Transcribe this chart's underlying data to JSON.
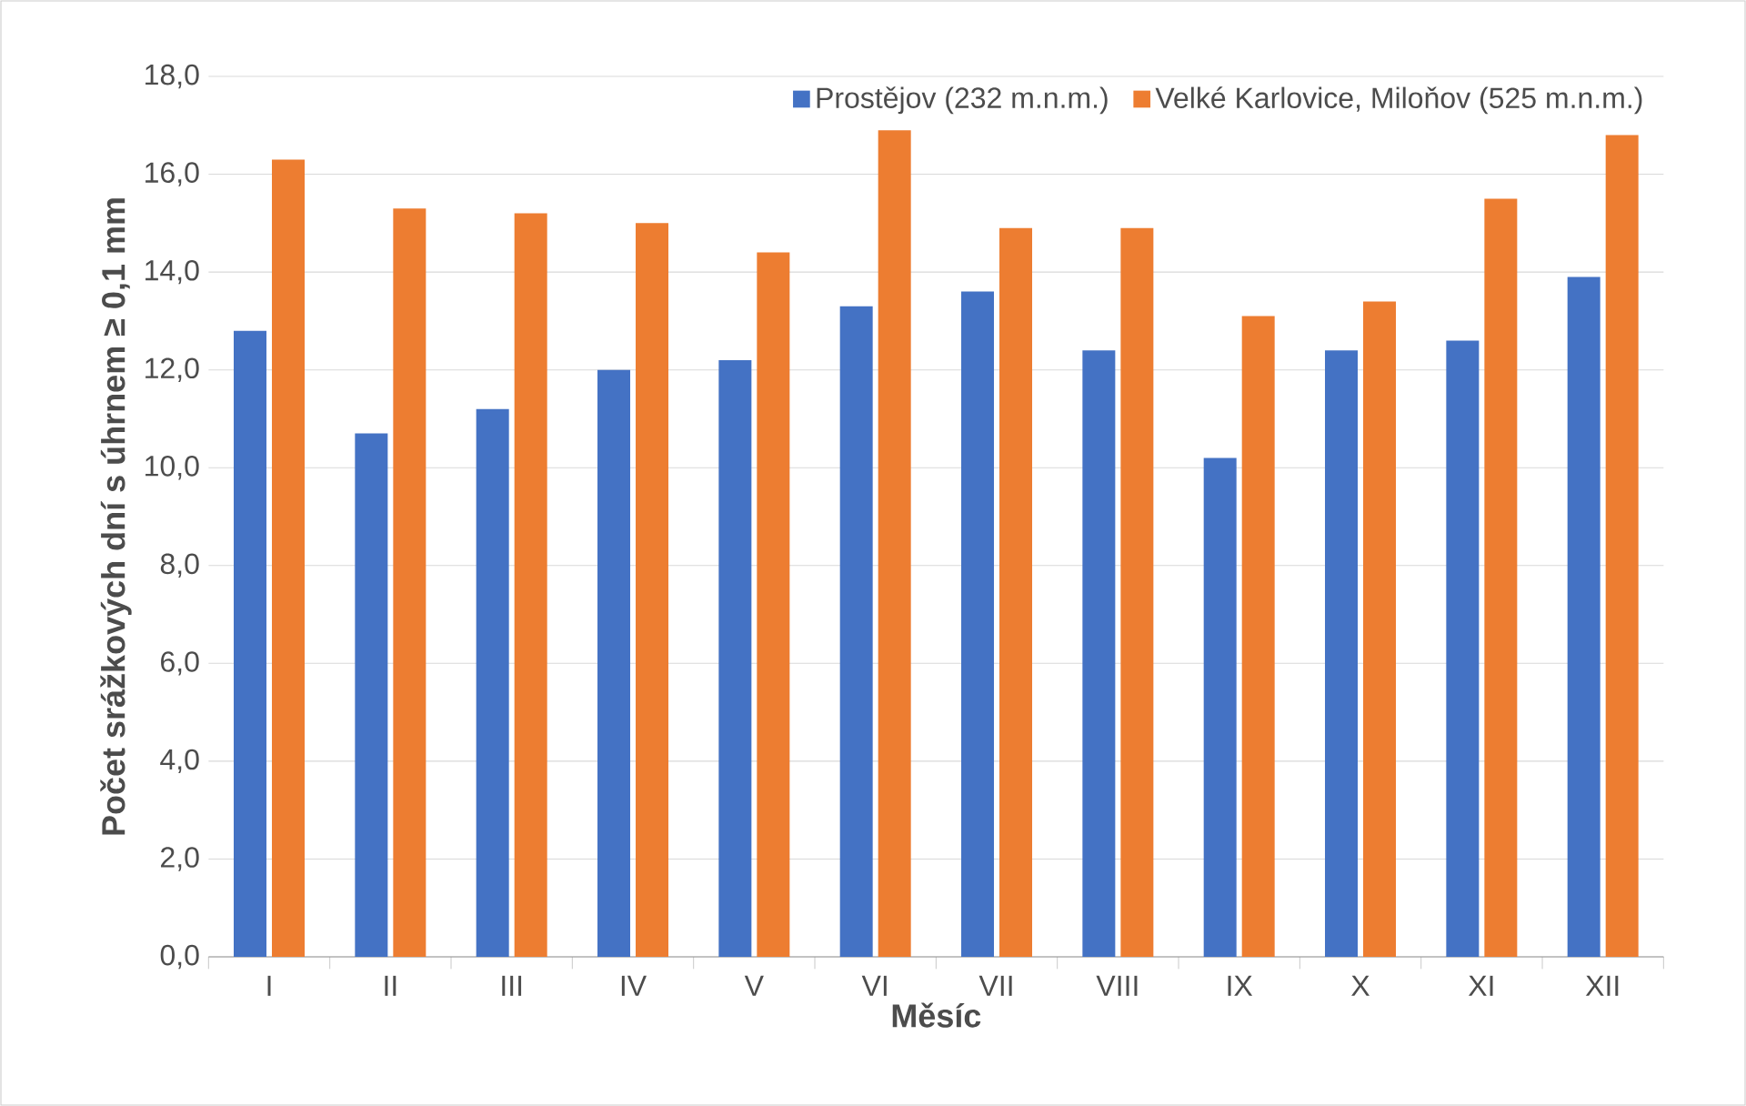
{
  "chart_data": {
    "type": "bar",
    "xlabel": "Měsíc",
    "ylabel": "Počet srážkových dní s úhrnem ≥ 0,1 mm",
    "categories": [
      "I",
      "II",
      "III",
      "IV",
      "V",
      "VI",
      "VII",
      "VIII",
      "IX",
      "X",
      "XI",
      "XII"
    ],
    "series": [
      {
        "name": "Prostějov (232 m.n.m.)",
        "color": "#4472c4",
        "values": [
          12.8,
          10.7,
          11.2,
          12.0,
          12.2,
          13.3,
          13.6,
          12.4,
          10.2,
          12.4,
          12.6,
          13.9
        ]
      },
      {
        "name": "Velké Karlovice, Miloňov (525 m.n.m.)",
        "color": "#ed7d31",
        "values": [
          16.3,
          15.3,
          15.2,
          15.0,
          14.4,
          16.9,
          14.9,
          14.9,
          13.1,
          13.4,
          15.5,
          16.8
        ]
      }
    ],
    "ylim": [
      0,
      18
    ],
    "yticks": [
      {
        "value": 0,
        "label": "0,0"
      },
      {
        "value": 2,
        "label": "2,0"
      },
      {
        "value": 4,
        "label": "4,0"
      },
      {
        "value": 6,
        "label": "6,0"
      },
      {
        "value": 8,
        "label": "8,0"
      },
      {
        "value": 10,
        "label": "10,0"
      },
      {
        "value": 12,
        "label": "12,0"
      },
      {
        "value": 14,
        "label": "14,0"
      },
      {
        "value": 16,
        "label": "16,0"
      },
      {
        "value": 18,
        "label": "18,0"
      }
    ],
    "grid": "y",
    "legend": "top right"
  }
}
